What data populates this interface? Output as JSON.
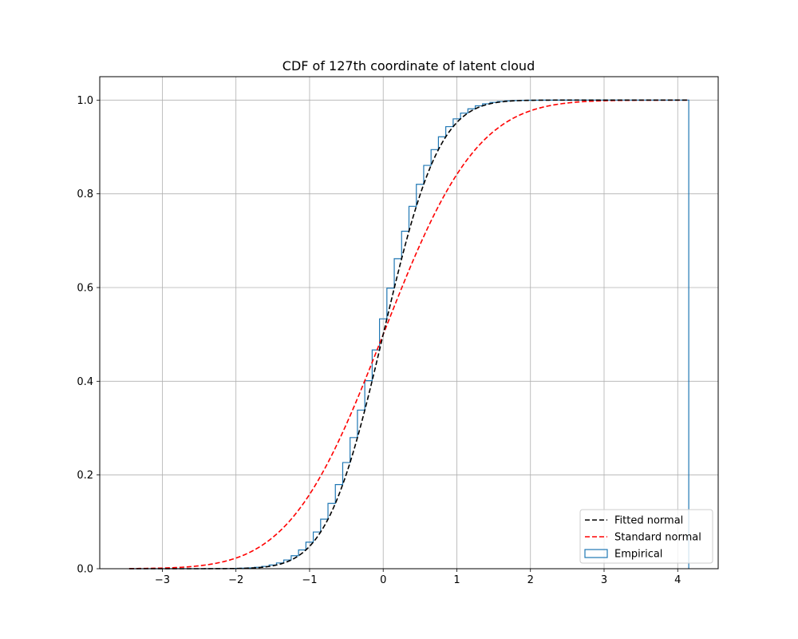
{
  "chart_data": {
    "type": "line",
    "title": "CDF of 127th coordinate of latent cloud",
    "xlabel": "",
    "ylabel": "",
    "xlim": [
      -3.85,
      4.55
    ],
    "ylim": [
      0.0,
      1.05
    ],
    "x_ticks": [
      -3,
      -2,
      -1,
      0,
      1,
      2,
      3,
      4
    ],
    "x_tick_labels": [
      "−3",
      "−2",
      "−1",
      "0",
      "1",
      "2",
      "3",
      "4"
    ],
    "y_ticks": [
      0.0,
      0.2,
      0.4,
      0.6,
      0.8,
      1.0
    ],
    "y_tick_labels": [
      "0.0",
      "0.2",
      "0.4",
      "0.6",
      "0.8",
      "1.0"
    ],
    "grid": true,
    "legend_position": "bottom-right",
    "series": [
      {
        "name": "Fitted normal",
        "style": "dashed",
        "color": "#000000",
        "mean": 0.0,
        "std": 0.6,
        "x_range": [
          -3.45,
          4.15
        ]
      },
      {
        "name": "Standard normal",
        "style": "dashed",
        "color": "#ff0000",
        "mean": 0.0,
        "std": 1.0,
        "x_range": [
          -3.45,
          4.15
        ]
      },
      {
        "name": "Empirical",
        "style": "step",
        "color": "#1f77b4",
        "x_range": [
          -3.45,
          4.15
        ],
        "bin_width": 0.1,
        "drop_at_end": true
      }
    ]
  }
}
